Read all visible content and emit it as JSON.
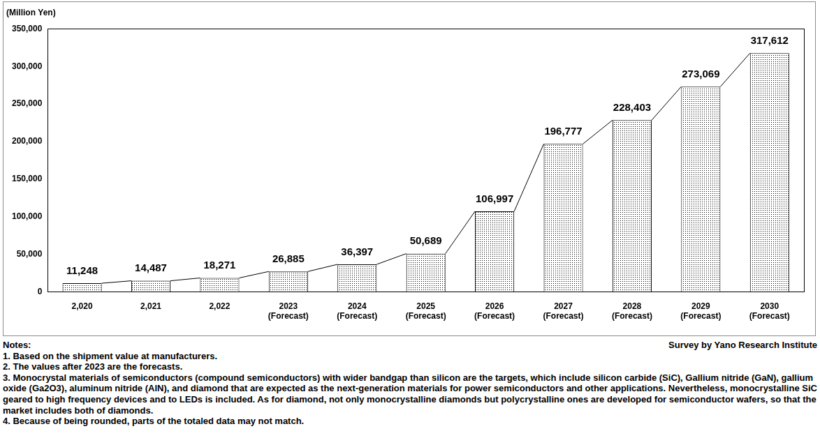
{
  "chart_data": {
    "type": "bar",
    "y_label": "(Million Yen)",
    "categories": [
      "2,020",
      "2,021",
      "2,022",
      "2023\n(Forecast)",
      "2024\n(Forecast)",
      "2025\n(Forecast)",
      "2026\n(Forecast)",
      "2027\n(Forecast)",
      "2028\n(Forecast)",
      "2029\n(Forecast)",
      "2030\n(Forecast)"
    ],
    "values": [
      11248,
      14487,
      18271,
      26885,
      36397,
      50689,
      106997,
      196777,
      228403,
      273069,
      317612
    ],
    "value_labels": [
      "11,248",
      "14,487",
      "18,271",
      "26,885",
      "36,397",
      "50,689",
      "106,997",
      "196,777",
      "228,403",
      "273,069",
      "317,612"
    ],
    "data_labels": true,
    "color": "#000000",
    "ylim": [
      0,
      350000
    ],
    "yticks": [
      0,
      {
        "value": 50000,
        "label": "50,000"
      },
      {
        "value": 100000,
        "label": "100,000"
      },
      {
        "value": 150000,
        "label": "150,000"
      },
      {
        "value": 200000,
        "label": "200,000"
      },
      {
        "value": 250000,
        "label": "250,000"
      },
      {
        "value": 300000,
        "label": "300,000"
      },
      {
        "value": 350000,
        "label": "350,000"
      }
    ],
    "grid": false,
    "notes": [
      "Notes:",
      "1. Based on the shipment value at manufacturers.",
      "2. The values after 2023 are the forecasts.",
      "3. Monocrystal materials of semiconductors (compound semiconductors) with wider bandgap than silicon are the targets, which include silicon carbide (SiC), Gallium nitride (GaN), gallium oxide (Ga2O3), aluminum nitride (AlN), and diamond that are expected as the next-generation materials for power semiconductors and other applications. Nevertheless, monocrystalline SiC geared to high frequency devices and to LEDs is included. As for diamond, not only monocrystalline diamonds but polycrystalline ones are developed for semiconductor wafers, so that the market includes both of diamonds.",
      "4. Because of being rounded, parts of the totaled data may not match."
    ],
    "source": "Survey by Yano Research Institute"
  }
}
